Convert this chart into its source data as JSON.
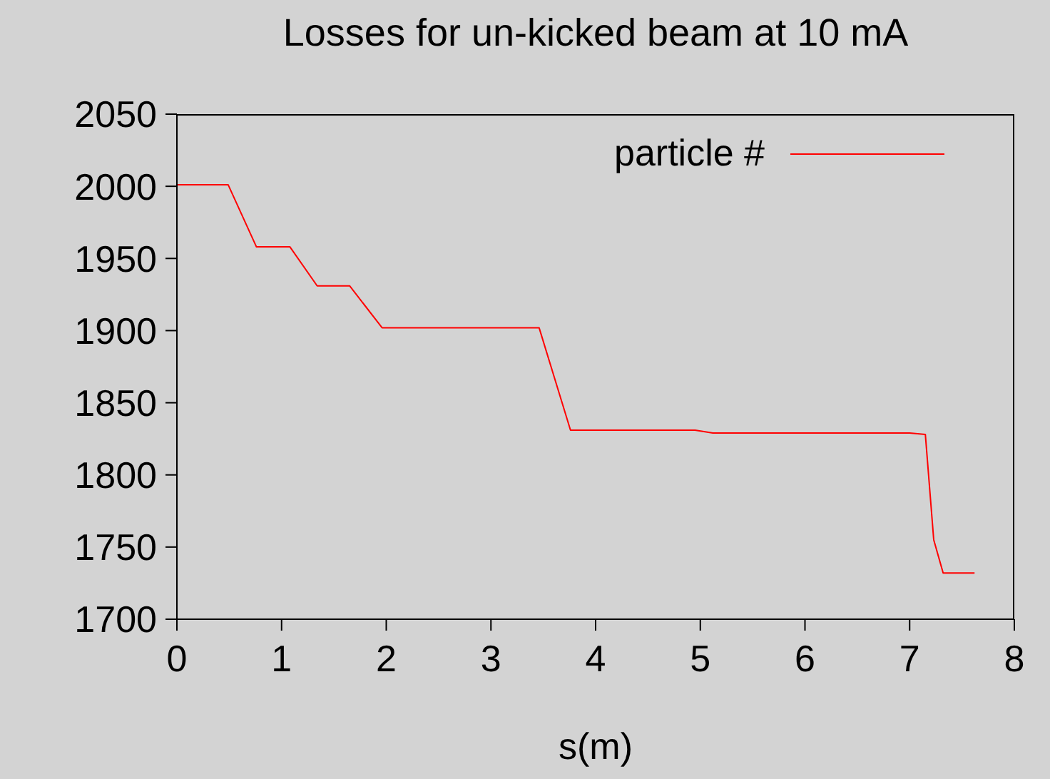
{
  "chart_data": {
    "type": "line",
    "title": "Losses for un-kicked beam  at 10 mA",
    "xlabel": "s(m)",
    "x": [
      0,
      0.49,
      0.76,
      1.08,
      1.34,
      1.65,
      1.96,
      3.46,
      3.76,
      4.95,
      5.12,
      7.0,
      7.15,
      7.23,
      7.32,
      7.62
    ],
    "series": [
      {
        "name": "particle #",
        "color": "#ff0000",
        "values": [
          2001,
          2001,
          1958,
          1958,
          1931,
          1931,
          1902,
          1902,
          1831,
          1831,
          1829,
          1829,
          1828,
          1755,
          1732,
          1732
        ]
      }
    ],
    "xlim": [
      0,
      8
    ],
    "xticks": [
      0,
      1,
      2,
      3,
      4,
      5,
      6,
      7,
      8
    ],
    "ylim": [
      1700,
      2050
    ],
    "yticks": [
      1700,
      1750,
      1800,
      1850,
      1900,
      1950,
      2000,
      2050
    ],
    "grid": false,
    "legend": "top right",
    "marker": "none",
    "line_style": "solid"
  }
}
